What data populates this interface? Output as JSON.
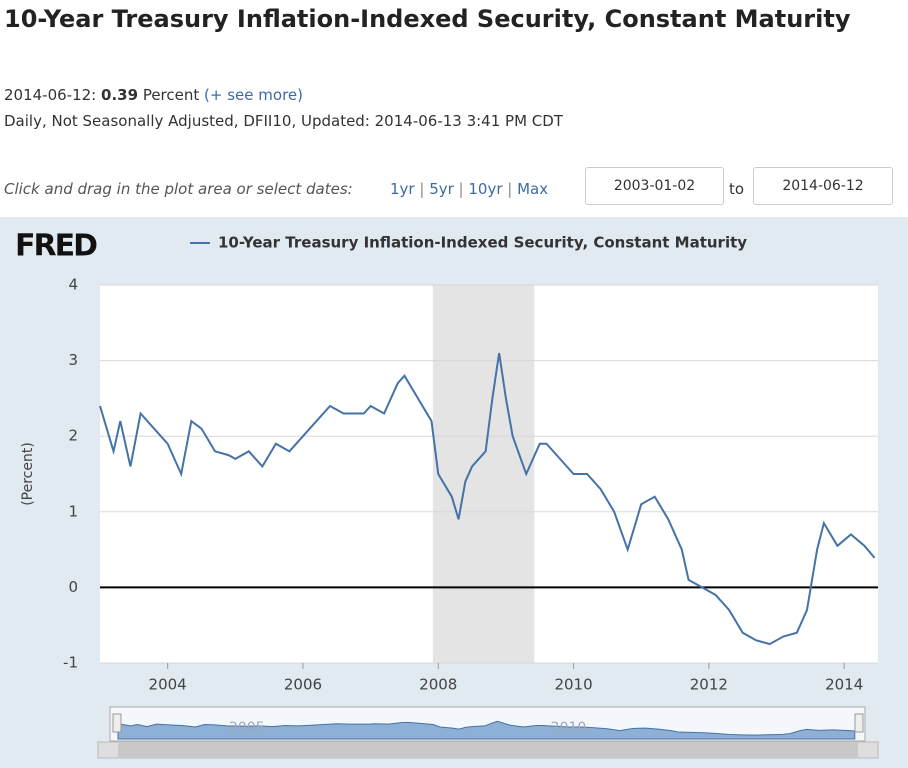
{
  "header": {
    "title": "10-Year Treasury Inflation-Indexed Security, Constant Maturity",
    "date": "2014-06-12:",
    "value": 0.39,
    "unit": "Percent",
    "more": "(+ see more)",
    "details": "Daily, Not Seasonally Adjusted, DFII10, Updated: 2014-06-13 3:41 PM CDT"
  },
  "controls": {
    "prompt": "Click and drag in the plot area or select dates:",
    "ranges": [
      "1yr",
      "5yr",
      "10yr",
      "Max"
    ],
    "from": "2003-01-02",
    "to": "to",
    "until": "2014-06-12"
  },
  "chart_data": {
    "type": "line",
    "logo": "FRED",
    "ylabel": "(Percent)",
    "x": [
      2003.0,
      2003.1,
      2003.2,
      2003.3,
      2003.45,
      2003.6,
      2003.7,
      2003.9,
      2004.0,
      2004.2,
      2004.35,
      2004.5,
      2004.7,
      2004.9,
      2005.0,
      2005.2,
      2005.4,
      2005.6,
      2005.8,
      2006.0,
      2006.2,
      2006.4,
      2006.6,
      2006.9,
      2007.0,
      2007.2,
      2007.4,
      2007.5,
      2007.7,
      2007.9,
      2008.0,
      2008.2,
      2008.3,
      2008.4,
      2008.5,
      2008.7,
      2008.8,
      2008.9,
      2009.0,
      2009.1,
      2009.3,
      2009.5,
      2009.6,
      2009.8,
      2010.0,
      2010.2,
      2010.4,
      2010.6,
      2010.8,
      2010.9,
      2011.0,
      2011.2,
      2011.4,
      2011.6,
      2011.7,
      2011.9,
      2012.1,
      2012.3,
      2012.5,
      2012.7,
      2012.9,
      2013.1,
      2013.3,
      2013.45,
      2013.6,
      2013.7,
      2013.9,
      2014.1,
      2014.3,
      2014.45
    ],
    "series": [
      {
        "name": "10-Year Treasury Inflation-Indexed Security, Constant Maturity",
        "color": "#4572a7",
        "values": [
          2.4,
          2.1,
          1.8,
          2.2,
          1.6,
          2.3,
          2.2,
          2.0,
          1.9,
          1.5,
          2.2,
          2.1,
          1.8,
          1.75,
          1.7,
          1.8,
          1.6,
          1.9,
          1.8,
          2.0,
          2.2,
          2.4,
          2.3,
          2.3,
          2.4,
          2.3,
          2.7,
          2.8,
          2.5,
          2.2,
          1.5,
          1.2,
          0.9,
          1.4,
          1.6,
          1.8,
          2.5,
          3.1,
          2.5,
          2.0,
          1.5,
          1.9,
          1.9,
          1.7,
          1.5,
          1.5,
          1.3,
          1.0,
          0.5,
          0.8,
          1.1,
          1.2,
          0.9,
          0.5,
          0.1,
          0.0,
          -0.1,
          -0.3,
          -0.6,
          -0.7,
          -0.75,
          -0.65,
          -0.6,
          -0.3,
          0.5,
          0.85,
          0.55,
          0.7,
          0.55,
          0.39
        ]
      }
    ],
    "shading": [
      {
        "start": 2007.92,
        "end": 2009.42
      }
    ],
    "xlim": [
      2003.0,
      2014.5
    ],
    "xticks": [
      2004,
      2006,
      2008,
      2010,
      2012,
      2014
    ],
    "ylim": [
      -1,
      4
    ],
    "yticks": [
      -1,
      0,
      1,
      2,
      3,
      4
    ],
    "grid": true,
    "navigator": {
      "xticks": [
        2005,
        2010
      ]
    }
  }
}
